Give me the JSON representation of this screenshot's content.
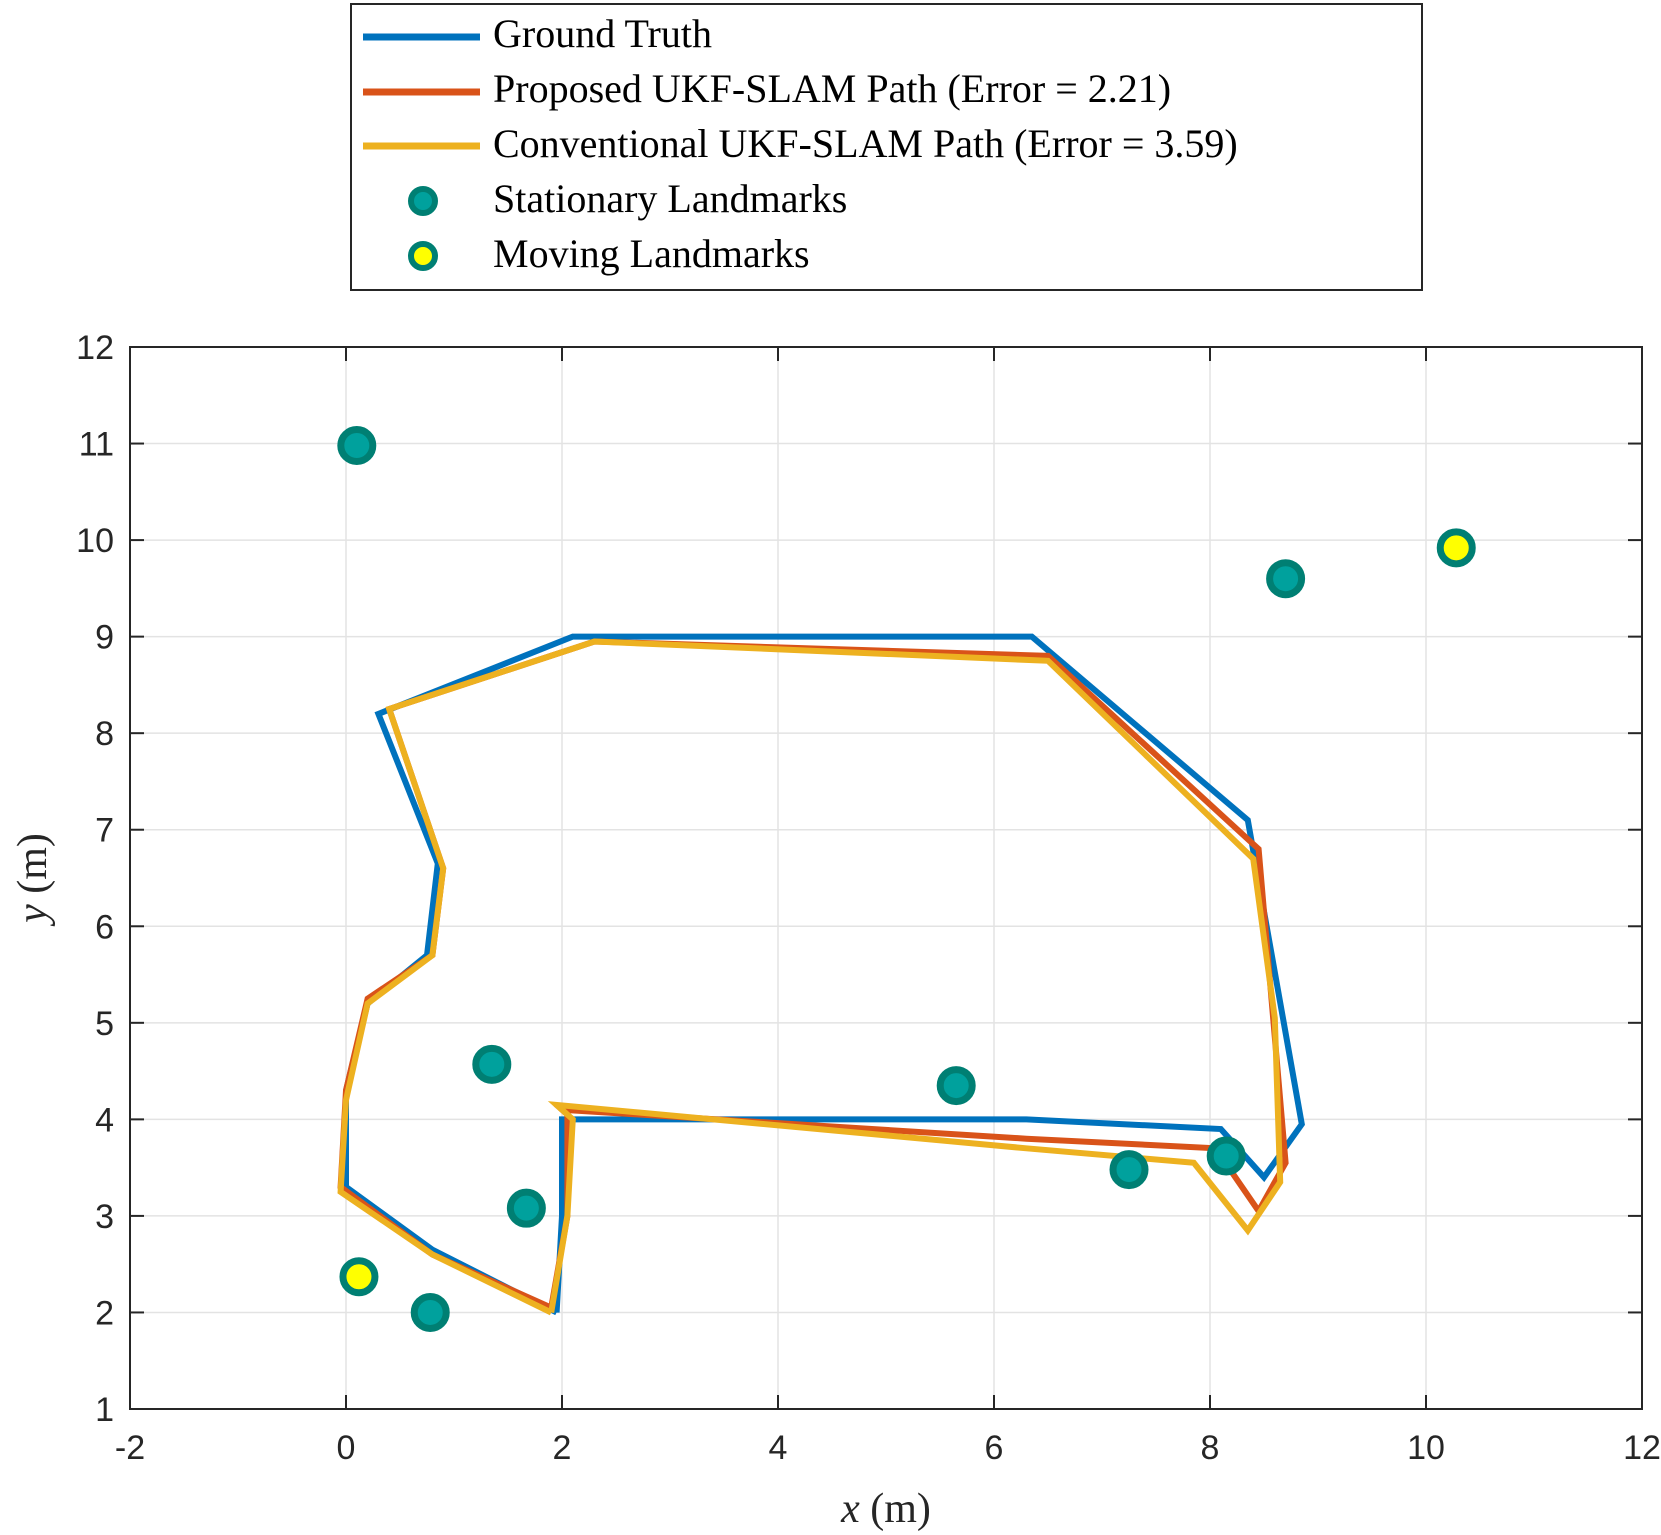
{
  "chart_data": {
    "type": "line",
    "xlabel": {
      "var": "x",
      "unit": " (m)"
    },
    "ylabel": {
      "var": "y",
      "unit": " (m)"
    },
    "xlim": [
      -2,
      12
    ],
    "ylim": [
      1,
      12
    ],
    "xticks": [
      "-2",
      "0",
      "2",
      "4",
      "6",
      "8",
      "10",
      "12"
    ],
    "yticks": [
      "1",
      "2",
      "3",
      "4",
      "5",
      "6",
      "7",
      "8",
      "9",
      "10",
      "11",
      "12"
    ],
    "grid": true,
    "legend_position": "top-outside",
    "series": [
      {
        "name": "Ground Truth",
        "color": "#0072BD",
        "points": [
          [
            1.95,
            2.0
          ],
          [
            2.0,
            3.0
          ],
          [
            2.0,
            4.0
          ],
          [
            6.3,
            4.0
          ],
          [
            8.1,
            3.9
          ],
          [
            8.5,
            3.4
          ],
          [
            8.85,
            3.95
          ],
          [
            8.35,
            7.1
          ],
          [
            6.35,
            9.0
          ],
          [
            2.1,
            9.0
          ],
          [
            0.3,
            8.2
          ],
          [
            0.85,
            6.65
          ],
          [
            0.75,
            5.7
          ],
          [
            0.2,
            5.2
          ],
          [
            0.0,
            4.3
          ],
          [
            0.0,
            3.3
          ],
          [
            0.8,
            2.65
          ],
          [
            1.95,
            2.0
          ]
        ]
      },
      {
        "name": "Proposed UKF-SLAM Path (Error = 2.21)",
        "color": "#D95319",
        "points": [
          [
            1.9,
            2.05
          ],
          [
            2.05,
            3.0
          ],
          [
            2.05,
            4.05
          ],
          [
            2.0,
            4.1
          ],
          [
            6.3,
            3.8
          ],
          [
            8.05,
            3.7
          ],
          [
            8.45,
            3.05
          ],
          [
            8.7,
            3.55
          ],
          [
            8.45,
            6.8
          ],
          [
            6.5,
            8.8
          ],
          [
            2.3,
            8.95
          ],
          [
            0.4,
            8.25
          ],
          [
            0.9,
            6.6
          ],
          [
            0.8,
            5.7
          ],
          [
            0.2,
            5.25
          ],
          [
            0.0,
            4.3
          ],
          [
            -0.05,
            3.3
          ],
          [
            0.8,
            2.6
          ],
          [
            1.9,
            2.05
          ]
        ]
      },
      {
        "name": "Conventional UKF-SLAM Path (Error = 3.59)",
        "color": "#EDB120",
        "points": [
          [
            1.9,
            2.0
          ],
          [
            2.05,
            3.0
          ],
          [
            2.1,
            4.0
          ],
          [
            1.95,
            4.15
          ],
          [
            6.3,
            3.7
          ],
          [
            7.85,
            3.55
          ],
          [
            8.35,
            2.85
          ],
          [
            8.65,
            3.35
          ],
          [
            8.6,
            5.05
          ],
          [
            8.4,
            6.7
          ],
          [
            6.5,
            8.75
          ],
          [
            2.3,
            8.95
          ],
          [
            0.4,
            8.25
          ],
          [
            0.9,
            6.6
          ],
          [
            0.8,
            5.7
          ],
          [
            0.2,
            5.2
          ],
          [
            0.0,
            4.2
          ],
          [
            -0.05,
            3.25
          ],
          [
            0.8,
            2.6
          ],
          [
            1.9,
            2.0
          ]
        ]
      }
    ],
    "landmarks": {
      "stationary": {
        "name": "Stationary Landmarks",
        "face_color": "#00A19D",
        "edge_color": "#007F73",
        "points": [
          [
            0.1,
            10.98
          ],
          [
            8.7,
            9.6
          ],
          [
            1.35,
            4.57
          ],
          [
            5.65,
            4.35
          ],
          [
            8.15,
            3.62
          ],
          [
            7.25,
            3.48
          ],
          [
            1.67,
            3.08
          ],
          [
            0.78,
            2.0
          ]
        ]
      },
      "moving": {
        "name": "Moving Landmarks",
        "face_color": "#FFFF00",
        "edge_color": "#007F73",
        "points": [
          [
            10.28,
            9.92
          ],
          [
            0.12,
            2.37
          ]
        ]
      }
    }
  }
}
